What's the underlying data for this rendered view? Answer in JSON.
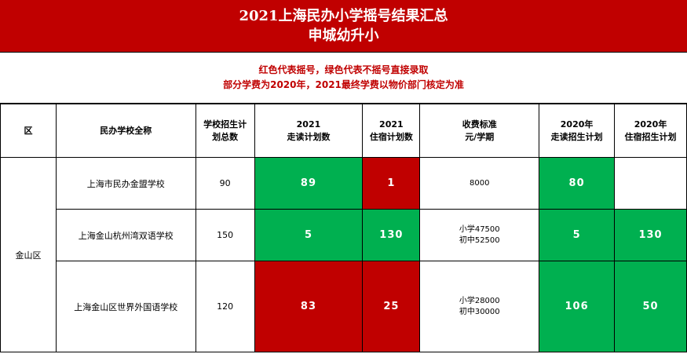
{
  "title": {
    "line1": "2021上海民办小学摇号结果汇总",
    "line2": "申城幼升小"
  },
  "notes": {
    "line1": "红色代表摇号，绿色代表不摇号直接录取",
    "line2": "部分学费为2020年，2021最终学费以物价部门核定为准"
  },
  "colors": {
    "red": "#c00000",
    "green": "#00b050",
    "white": "#ffffff"
  },
  "headers": {
    "district": "区",
    "school_name": "民办学校全称",
    "total_plan": [
      "学校招生计",
      "划总数"
    ],
    "day_2021": [
      "2021",
      "走读计划数"
    ],
    "boarding_2021": [
      "2021",
      "住宿计划数"
    ],
    "fee": [
      "收费标准",
      "元/学期"
    ],
    "day_2020": [
      "2020年",
      "走读招生计划"
    ],
    "boarding_2020": [
      "2020年",
      "住宿招生计划"
    ]
  },
  "district": "金山区",
  "rows": [
    {
      "school": "上海市民办金盟学校",
      "total": "90",
      "day_2021": "89",
      "boarding_2021": "1",
      "fee": [
        "8000"
      ],
      "day_2020": "80",
      "boarding_2020": ""
    },
    {
      "school": "上海金山杭州湾双语学校",
      "total": "150",
      "day_2021": "5",
      "boarding_2021": "130",
      "fee": [
        "小学47500",
        "初中52500"
      ],
      "day_2020": "5",
      "boarding_2020": "130"
    },
    {
      "school": "上海金山区世界外国语学校",
      "total": "120",
      "day_2021": "83",
      "boarding_2021": "25",
      "fee": [
        "小学28000",
        "初中30000"
      ],
      "day_2020": "106",
      "boarding_2020": "50"
    }
  ]
}
